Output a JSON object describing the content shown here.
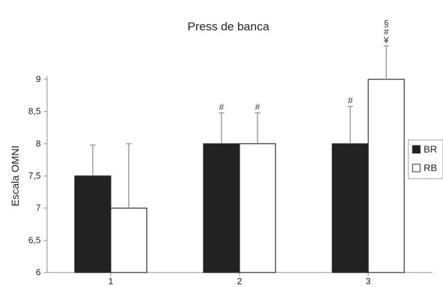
{
  "chart_data": {
    "type": "bar",
    "title": "Press de banca",
    "ylabel": "Escala OMNI",
    "xlabel": "",
    "categories": [
      "1",
      "2",
      "3"
    ],
    "ylim": [
      6,
      9
    ],
    "yticks": [
      "6",
      "6,5",
      "7",
      "7,5",
      "8",
      "8,5",
      "9"
    ],
    "ytick_values": [
      6,
      6.5,
      7,
      7.5,
      8,
      8.5,
      9
    ],
    "series": [
      {
        "name": "BR",
        "color": "#222222",
        "values": [
          7.5,
          8.0,
          8.0
        ],
        "errors": [
          0.48,
          0.48,
          0.58
        ]
      },
      {
        "name": "RB",
        "color": "#ffffff",
        "values": [
          7.0,
          8.0,
          9.0
        ],
        "errors": [
          1.0,
          0.48,
          0.52
        ]
      }
    ],
    "annotations": [
      {
        "category": 1,
        "series": 0,
        "lines": [
          "#"
        ]
      },
      {
        "category": 1,
        "series": 1,
        "lines": [
          "#"
        ]
      },
      {
        "category": 2,
        "series": 0,
        "lines": [
          "#"
        ]
      },
      {
        "category": 2,
        "series": 1,
        "lines": [
          "§",
          "#",
          "¥"
        ]
      }
    ],
    "legend_position": "right",
    "grid": false
  }
}
